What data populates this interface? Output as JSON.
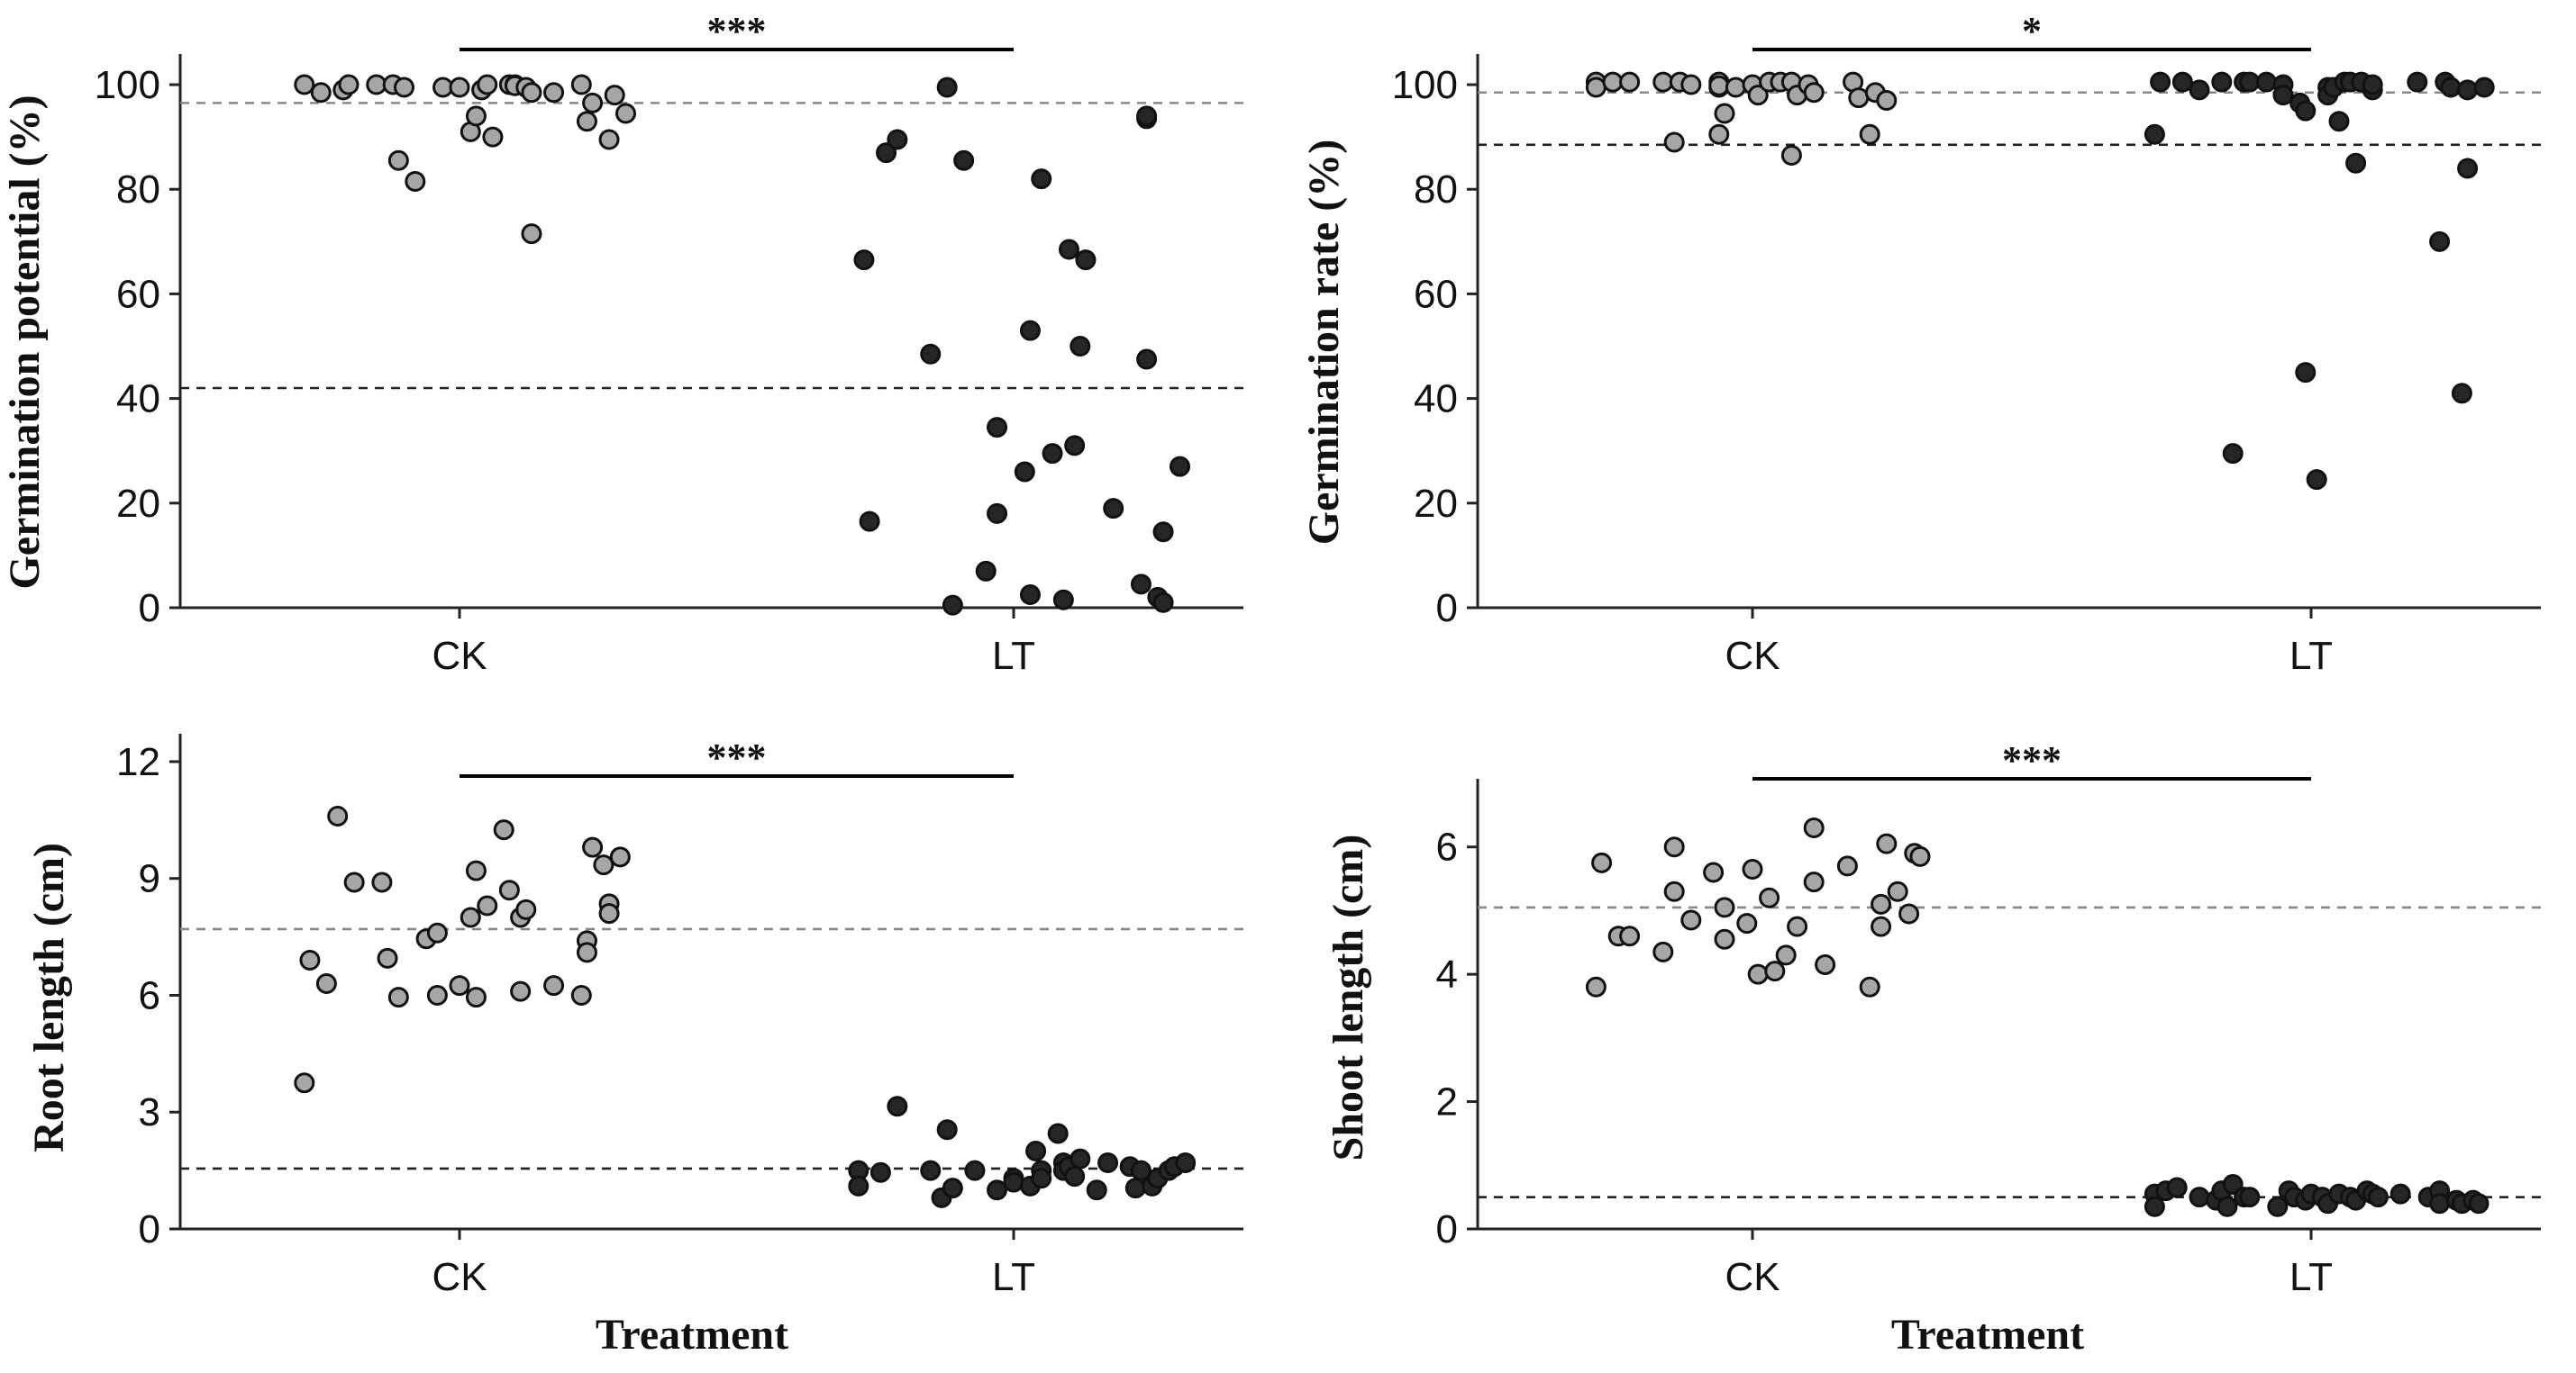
{
  "chart_data": [
    {
      "type": "scatter",
      "id": "germination-potential",
      "ylabel": "Germination potential (%)",
      "xlabel": "",
      "categories": [
        "CK",
        "LT"
      ],
      "ylim": [
        0,
        105
      ],
      "yticks": [
        "0",
        "20",
        "40",
        "60",
        "80",
        "100"
      ],
      "significance": "***",
      "grid": false,
      "series": [
        {
          "name": "CK",
          "color": "#a6a6a6",
          "mean": 96.5,
          "points": [
            [
              -0.28,
              100
            ],
            [
              -0.25,
              98.5
            ],
            [
              -0.21,
              99
            ],
            [
              -0.2,
              100
            ],
            [
              -0.15,
              100
            ],
            [
              -0.12,
              100
            ],
            [
              -0.11,
              85.5
            ],
            [
              -0.1,
              99.5
            ],
            [
              -0.08,
              81.5
            ],
            [
              -0.03,
              99.5
            ],
            [
              0.0,
              99.5
            ],
            [
              0.02,
              91
            ],
            [
              0.03,
              94
            ],
            [
              0.04,
              99
            ],
            [
              0.05,
              100
            ],
            [
              0.06,
              90
            ],
            [
              0.09,
              100
            ],
            [
              0.1,
              100
            ],
            [
              0.1,
              99.8
            ],
            [
              0.12,
              99.5
            ],
            [
              0.13,
              71.5
            ],
            [
              0.13,
              98.5
            ],
            [
              0.17,
              98.5
            ],
            [
              0.22,
              100
            ],
            [
              0.23,
              93
            ],
            [
              0.24,
              96.5
            ],
            [
              0.27,
              89.5
            ],
            [
              0.28,
              98
            ],
            [
              0.3,
              94.5
            ]
          ]
        },
        {
          "name": "LT",
          "color": "#262626",
          "mean": 42,
          "points": [
            [
              -0.27,
              66.5
            ],
            [
              -0.26,
              16.5
            ],
            [
              -0.23,
              87
            ],
            [
              -0.21,
              89.5
            ],
            [
              -0.15,
              48.5
            ],
            [
              -0.12,
              99.5
            ],
            [
              -0.11,
              0.5
            ],
            [
              -0.09,
              85.5
            ],
            [
              -0.05,
              7
            ],
            [
              -0.03,
              34.5
            ],
            [
              -0.03,
              18
            ],
            [
              0.02,
              26
            ],
            [
              0.03,
              53
            ],
            [
              0.03,
              2.5
            ],
            [
              0.05,
              82
            ],
            [
              0.07,
              29.5
            ],
            [
              0.09,
              1.5
            ],
            [
              0.1,
              68.5
            ],
            [
              0.11,
              31
            ],
            [
              0.12,
              50
            ],
            [
              0.13,
              66.5
            ],
            [
              0.18,
              19
            ],
            [
              0.23,
              4.5
            ],
            [
              0.24,
              47.5
            ],
            [
              0.24,
              93.5
            ],
            [
              0.24,
              94
            ],
            [
              0.26,
              2
            ],
            [
              0.27,
              14.5
            ],
            [
              0.27,
              1
            ],
            [
              0.3,
              27
            ]
          ]
        }
      ]
    },
    {
      "type": "scatter",
      "id": "germination-rate",
      "ylabel": "Germination rate (%)",
      "xlabel": "",
      "categories": [
        "CK",
        "LT"
      ],
      "ylim": [
        0,
        105
      ],
      "yticks": [
        "0",
        "20",
        "40",
        "60",
        "80",
        "100"
      ],
      "significance": "*",
      "grid": false,
      "series": [
        {
          "name": "CK",
          "color": "#a6a6a6",
          "mean": 98.5,
          "points": [
            [
              -0.28,
              100.5
            ],
            [
              -0.28,
              99.5
            ],
            [
              -0.25,
              100.5
            ],
            [
              -0.22,
              100.5
            ],
            [
              -0.16,
              100.5
            ],
            [
              -0.14,
              89
            ],
            [
              -0.13,
              100.5
            ],
            [
              -0.11,
              100
            ],
            [
              -0.06,
              100.5
            ],
            [
              -0.06,
              99.5
            ],
            [
              -0.06,
              90.5
            ],
            [
              -0.06,
              99.8
            ],
            [
              -0.05,
              94.5
            ],
            [
              -0.03,
              99.5
            ],
            [
              0.0,
              100
            ],
            [
              0.01,
              98
            ],
            [
              0.03,
              100.5
            ],
            [
              0.05,
              100.5
            ],
            [
              0.07,
              86.5
            ],
            [
              0.07,
              100.5
            ],
            [
              0.08,
              98
            ],
            [
              0.1,
              100
            ],
            [
              0.11,
              98.5
            ],
            [
              0.18,
              100.5
            ],
            [
              0.19,
              97.5
            ],
            [
              0.21,
              90.5
            ],
            [
              0.22,
              98.5
            ],
            [
              0.24,
              97
            ]
          ]
        },
        {
          "name": "LT",
          "color": "#262626",
          "mean": 88.5,
          "points": [
            [
              -0.28,
              90.5
            ],
            [
              -0.27,
              100.5
            ],
            [
              -0.23,
              100.5
            ],
            [
              -0.2,
              99
            ],
            [
              -0.16,
              100.5
            ],
            [
              -0.14,
              29.5
            ],
            [
              -0.12,
              100.5
            ],
            [
              -0.11,
              100.5
            ],
            [
              -0.08,
              100.5
            ],
            [
              -0.05,
              100
            ],
            [
              -0.05,
              98
            ],
            [
              -0.02,
              96.5
            ],
            [
              -0.01,
              45
            ],
            [
              -0.01,
              95
            ],
            [
              0.01,
              24.5
            ],
            [
              0.03,
              99.5
            ],
            [
              0.03,
              98
            ],
            [
              0.04,
              99.5
            ],
            [
              0.05,
              93
            ],
            [
              0.06,
              100.5
            ],
            [
              0.07,
              100.5
            ],
            [
              0.08,
              85
            ],
            [
              0.09,
              100.5
            ],
            [
              0.11,
              99
            ],
            [
              0.11,
              100
            ],
            [
              0.19,
              100.5
            ],
            [
              0.23,
              70
            ],
            [
              0.24,
              100.5
            ],
            [
              0.25,
              99.5
            ],
            [
              0.27,
              41
            ],
            [
              0.28,
              84
            ],
            [
              0.28,
              99
            ],
            [
              0.31,
              99.5
            ]
          ]
        }
      ]
    },
    {
      "type": "scatter",
      "id": "root-length",
      "ylabel": "Root length (cm)",
      "xlabel": "Treatment",
      "categories": [
        "CK",
        "LT"
      ],
      "ylim": [
        0,
        12.6
      ],
      "yticks": [
        "0",
        "3",
        "6",
        "9",
        "12"
      ],
      "significance": "***",
      "grid": false,
      "series": [
        {
          "name": "CK",
          "color": "#a6a6a6",
          "mean": 7.7,
          "points": [
            [
              -0.28,
              3.75
            ],
            [
              -0.27,
              6.9
            ],
            [
              -0.24,
              6.3
            ],
            [
              -0.22,
              10.6
            ],
            [
              -0.19,
              8.9
            ],
            [
              -0.14,
              8.9
            ],
            [
              -0.13,
              6.95
            ],
            [
              -0.11,
              5.95
            ],
            [
              -0.06,
              7.45
            ],
            [
              -0.04,
              7.6
            ],
            [
              -0.04,
              6.0
            ],
            [
              0.0,
              6.25
            ],
            [
              0.02,
              8.0
            ],
            [
              0.03,
              9.2
            ],
            [
              0.03,
              5.95
            ],
            [
              0.05,
              8.3
            ],
            [
              0.08,
              10.25
            ],
            [
              0.09,
              8.7
            ],
            [
              0.11,
              8.0
            ],
            [
              0.11,
              6.1
            ],
            [
              0.12,
              8.2
            ],
            [
              0.17,
              6.25
            ],
            [
              0.22,
              6.0
            ],
            [
              0.23,
              7.4
            ],
            [
              0.23,
              7.1
            ],
            [
              0.24,
              9.8
            ],
            [
              0.26,
              9.35
            ],
            [
              0.27,
              8.35
            ],
            [
              0.27,
              8.1
            ],
            [
              0.29,
              9.55
            ]
          ]
        },
        {
          "name": "LT",
          "color": "#262626",
          "mean": 1.55,
          "points": [
            [
              -0.28,
              1.5
            ],
            [
              -0.28,
              1.1
            ],
            [
              -0.24,
              1.45
            ],
            [
              -0.21,
              3.15
            ],
            [
              -0.15,
              1.5
            ],
            [
              -0.13,
              0.8
            ],
            [
              -0.12,
              2.55
            ],
            [
              -0.11,
              1.05
            ],
            [
              -0.07,
              1.5
            ],
            [
              -0.03,
              1.0
            ],
            [
              0.0,
              1.3
            ],
            [
              0.0,
              1.2
            ],
            [
              0.03,
              1.1
            ],
            [
              0.04,
              2.0
            ],
            [
              0.05,
              1.5
            ],
            [
              0.05,
              1.3
            ],
            [
              0.08,
              2.45
            ],
            [
              0.09,
              1.7
            ],
            [
              0.09,
              1.5
            ],
            [
              0.1,
              1.6
            ],
            [
              0.11,
              1.35
            ],
            [
              0.12,
              1.8
            ],
            [
              0.15,
              1.0
            ],
            [
              0.17,
              1.7
            ],
            [
              0.21,
              1.6
            ],
            [
              0.22,
              1.05
            ],
            [
              0.23,
              1.5
            ],
            [
              0.25,
              1.1
            ],
            [
              0.26,
              1.3
            ],
            [
              0.28,
              1.5
            ],
            [
              0.29,
              1.6
            ],
            [
              0.31,
              1.7
            ]
          ]
        }
      ]
    },
    {
      "type": "scatter",
      "id": "shoot-length",
      "ylabel": "Shoot length (cm)",
      "xlabel": "Treatment",
      "categories": [
        "CK",
        "LT"
      ],
      "ylim": [
        0,
        7
      ],
      "yticks": [
        "0",
        "2",
        "4",
        "6"
      ],
      "significance": "***",
      "grid": false,
      "series": [
        {
          "name": "CK",
          "color": "#a6a6a6",
          "mean": 5.05,
          "points": [
            [
              -0.28,
              3.8
            ],
            [
              -0.27,
              5.75
            ],
            [
              -0.24,
              4.6
            ],
            [
              -0.22,
              4.6
            ],
            [
              -0.16,
              4.35
            ],
            [
              -0.14,
              6.0
            ],
            [
              -0.14,
              5.3
            ],
            [
              -0.11,
              4.85
            ],
            [
              -0.07,
              5.6
            ],
            [
              -0.05,
              5.05
            ],
            [
              -0.05,
              4.55
            ],
            [
              -0.01,
              4.8
            ],
            [
              0.0,
              5.65
            ],
            [
              0.01,
              4.0
            ],
            [
              0.03,
              5.2
            ],
            [
              0.04,
              4.05
            ],
            [
              0.06,
              4.3
            ],
            [
              0.08,
              4.75
            ],
            [
              0.11,
              6.3
            ],
            [
              0.11,
              5.45
            ],
            [
              0.13,
              4.15
            ],
            [
              0.17,
              5.7
            ],
            [
              0.21,
              3.8
            ],
            [
              0.23,
              4.75
            ],
            [
              0.23,
              5.1
            ],
            [
              0.24,
              6.05
            ],
            [
              0.26,
              5.3
            ],
            [
              0.28,
              4.95
            ],
            [
              0.29,
              5.9
            ],
            [
              0.3,
              5.85
            ]
          ]
        },
        {
          "name": "LT",
          "color": "#262626",
          "mean": 0.5,
          "points": [
            [
              -0.28,
              0.55
            ],
            [
              -0.28,
              0.35
            ],
            [
              -0.26,
              0.6
            ],
            [
              -0.24,
              0.65
            ],
            [
              -0.2,
              0.5
            ],
            [
              -0.17,
              0.45
            ],
            [
              -0.16,
              0.6
            ],
            [
              -0.15,
              0.35
            ],
            [
              -0.14,
              0.7
            ],
            [
              -0.12,
              0.5
            ],
            [
              -0.11,
              0.5
            ],
            [
              -0.06,
              0.35
            ],
            [
              -0.04,
              0.6
            ],
            [
              -0.03,
              0.5
            ],
            [
              -0.01,
              0.45
            ],
            [
              0.0,
              0.55
            ],
            [
              0.02,
              0.5
            ],
            [
              0.03,
              0.4
            ],
            [
              0.05,
              0.55
            ],
            [
              0.07,
              0.5
            ],
            [
              0.08,
              0.45
            ],
            [
              0.1,
              0.6
            ],
            [
              0.11,
              0.55
            ],
            [
              0.12,
              0.5
            ],
            [
              0.16,
              0.55
            ],
            [
              0.21,
              0.5
            ],
            [
              0.23,
              0.6
            ],
            [
              0.23,
              0.4
            ],
            [
              0.26,
              0.45
            ],
            [
              0.27,
              0.4
            ],
            [
              0.29,
              0.45
            ],
            [
              0.3,
              0.4
            ]
          ]
        }
      ]
    }
  ]
}
